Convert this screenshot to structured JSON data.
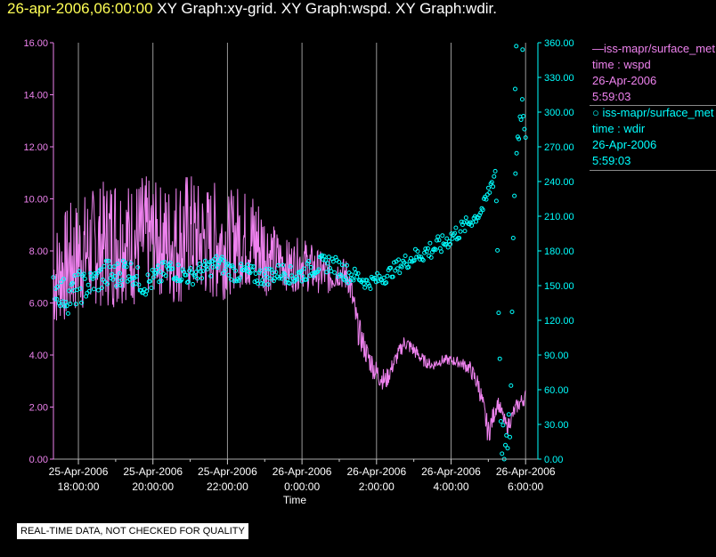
{
  "header": {
    "timestamp": "26-apr-2006,06:00:00",
    "graphs": "XY Graph:xy-grid.  XY Graph:wspd.  XY Graph:wdir."
  },
  "legend": {
    "series1": {
      "line1": "—iss-mapr/surface_met",
      "line2": "time : wspd",
      "line3": "26-Apr-2006",
      "line4": "5:59:03",
      "color": "#ee82ee"
    },
    "series2": {
      "line1": "○ iss-mapr/surface_met",
      "line2": "time : wdir",
      "line3": "26-Apr-2006",
      "line4": "5:59:03",
      "color": "#00ffff"
    }
  },
  "footer": {
    "quality_note": "REAL-TIME DATA, NOT CHECKED FOR QUALITY"
  },
  "chart_data": {
    "type": "line",
    "xlabel": "Time",
    "x_ticks": [
      {
        "date": "25-Apr-2006",
        "time": "18:00:00"
      },
      {
        "date": "25-Apr-2006",
        "time": "20:00:00"
      },
      {
        "date": "25-Apr-2006",
        "time": "22:00:00"
      },
      {
        "date": "26-Apr-2006",
        "time": "0:00:00"
      },
      {
        "date": "26-Apr-2006",
        "time": "2:00:00"
      },
      {
        "date": "26-Apr-2006",
        "time": "4:00:00"
      },
      {
        "date": "26-Apr-2006",
        "time": "6:00:00"
      }
    ],
    "xlim": [
      "25-Apr-2006 17:20",
      "26-Apr-2006 06:20"
    ],
    "y_left": {
      "ylim": [
        0,
        16
      ],
      "ticks": [
        "0.00",
        "2.00",
        "4.00",
        "6.00",
        "8.00",
        "10.00",
        "12.00",
        "14.00",
        "16.00"
      ],
      "color": "#ee82ee"
    },
    "y_right": {
      "ylim": [
        0,
        360
      ],
      "ticks": [
        "0.00",
        "30.00",
        "60.00",
        "90.00",
        "120.00",
        "150.00",
        "180.00",
        "210.00",
        "240.00",
        "270.00",
        "300.00",
        "330.00",
        "360.00"
      ],
      "color": "#00ffff"
    },
    "grid": "vertical",
    "series": [
      {
        "name": "iss-mapr/surface_met time : wspd",
        "axis": "left",
        "style": "line",
        "color": "#ee82ee",
        "x_hours": [
          -0.67,
          -0.5,
          -0.25,
          0,
          0.25,
          0.5,
          0.75,
          1,
          1.25,
          1.5,
          1.75,
          2,
          2.25,
          2.5,
          2.75,
          3,
          3.25,
          3.5,
          3.75,
          4,
          4.25,
          4.5,
          4.75,
          5,
          5.25,
          5.5,
          5.75,
          6,
          6.25,
          6.5,
          6.75,
          7,
          7.25,
          7.5,
          7.75,
          8,
          8.25,
          8.5,
          8.75,
          9,
          9.25,
          9.5,
          9.75,
          10,
          10.25,
          10.5,
          10.75,
          11,
          11.25,
          11.5,
          11.75,
          12
        ],
        "values": [
          7.0,
          7.2,
          7.5,
          7.8,
          8.0,
          8.2,
          8.3,
          8.5,
          8.4,
          8.3,
          8.4,
          8.5,
          8.4,
          8.3,
          8.5,
          8.6,
          8.4,
          8.3,
          8.4,
          8.2,
          8.6,
          8.4,
          8.3,
          8.0,
          7.8,
          7.5,
          7.4,
          7.6,
          7.3,
          7.2,
          7.0,
          7.2,
          7.0,
          5.0,
          4.0,
          3.3,
          3.0,
          3.8,
          4.5,
          4.2,
          3.8,
          3.6,
          3.8,
          3.8,
          3.7,
          3.5,
          2.8,
          1.0,
          2.2,
          1.2,
          2.0,
          2.4
        ],
        "amplitude": [
          2.2,
          2.0,
          2.4,
          2.2,
          2.4,
          2.3,
          2.5,
          2.8,
          2.3,
          2.5,
          2.6,
          2.2,
          2.2,
          2.4,
          2.6,
          2.5,
          2.2,
          2.3,
          2.4,
          2.0,
          2.0,
          2.0,
          2.2,
          1.8,
          1.2,
          1.0,
          1.0,
          1.0,
          1.0,
          0.8,
          0.7,
          0.6,
          0.7,
          0.6,
          0.5,
          0.5,
          0.4,
          0.3,
          0.3,
          0.3,
          0.25,
          0.2,
          0.2,
          0.2,
          0.2,
          0.3,
          0.4,
          0.5,
          0.3,
          0.3,
          0.3,
          0.3
        ]
      },
      {
        "name": "iss-mapr/surface_met time : wdir",
        "axis": "right",
        "style": "scatter",
        "color": "#00ffff",
        "x_hours": [
          -0.67,
          -0.5,
          -0.25,
          0,
          0.25,
          0.5,
          0.75,
          1,
          1.25,
          1.5,
          1.75,
          2,
          2.25,
          2.5,
          2.75,
          3,
          3.25,
          3.5,
          3.75,
          4,
          4.25,
          4.5,
          4.75,
          5,
          5.25,
          5.5,
          5.75,
          6,
          6.25,
          6.5,
          6.75,
          7,
          7.25,
          7.5,
          7.75,
          8,
          8.25,
          8.5,
          8.75,
          9,
          9.25,
          9.5,
          9.75,
          10,
          10.25,
          10.5,
          10.75,
          10.9,
          11.05,
          11.2,
          11.35,
          11.5,
          11.6,
          11.7,
          11.8,
          11.9,
          12
        ],
        "values": [
          150,
          145,
          140,
          148,
          150,
          155,
          160,
          158,
          165,
          160,
          150,
          155,
          160,
          165,
          160,
          158,
          162,
          165,
          170,
          165,
          160,
          162,
          158,
          158,
          160,
          162,
          158,
          160,
          165,
          168,
          170,
          165,
          160,
          158,
          152,
          155,
          158,
          165,
          170,
          175,
          178,
          182,
          185,
          192,
          198,
          205,
          212,
          220,
          235,
          250,
          20,
          5,
          40,
          240,
          280,
          310,
          285
        ],
        "spread": [
          12,
          14,
          15,
          15,
          12,
          12,
          14,
          12,
          12,
          10,
          10,
          10,
          10,
          10,
          8,
          8,
          8,
          8,
          8,
          8,
          8,
          8,
          8,
          8,
          8,
          8,
          8,
          8,
          8,
          8,
          8,
          8,
          8,
          6,
          6,
          6,
          6,
          6,
          7,
          7,
          8,
          10,
          8,
          8,
          8,
          6,
          6,
          6,
          8,
          10,
          20,
          15,
          20,
          20,
          15,
          12,
          10
        ]
      }
    ],
    "annotated_points_right": [
      {
        "x_hours": 11.75,
        "value": 357
      },
      {
        "x_hours": 11.92,
        "value": 354
      },
      {
        "x_hours": 11.72,
        "value": 320
      }
    ]
  }
}
